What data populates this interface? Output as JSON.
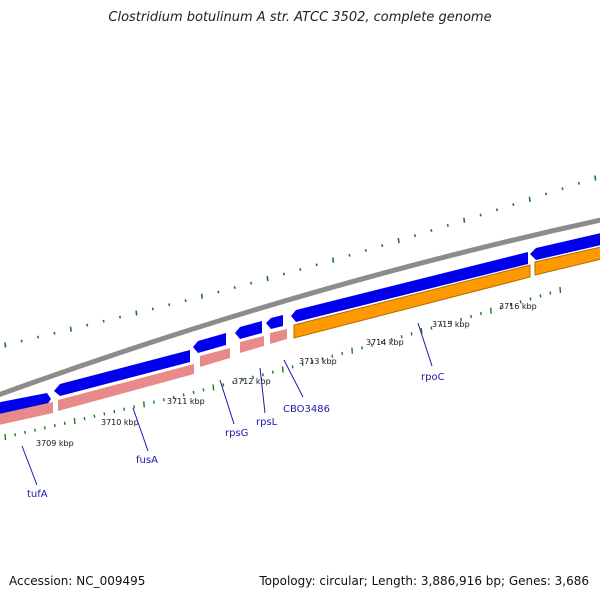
{
  "header": {
    "title": "Clostridium botulinum A str. ATCC 3502, complete genome"
  },
  "footer": {
    "accession": "Accession: NC_009495",
    "summary": "Topology: circular; Length: 3,886,916 bp; Genes: 3,686"
  },
  "map": {
    "colors": {
      "backbone": "#8c8c8c",
      "forward_gene": "#0000ee",
      "pink_feature": "#e98a8a",
      "orange_feature": "#ff9900",
      "orange_edge": "#b36b00",
      "gc_tick": "#1a7a1a",
      "label": "#1a1aa8"
    },
    "tick_labels": [
      {
        "kbp": 3709,
        "text": "3709 kbp"
      },
      {
        "kbp": 3710,
        "text": "3710 kbp"
      },
      {
        "kbp": 3711,
        "text": "3711 kbp"
      },
      {
        "kbp": 3712,
        "text": "3712 kbp"
      },
      {
        "kbp": 3713,
        "text": "3713 kbp"
      },
      {
        "kbp": 3714,
        "text": "3714 kbp"
      },
      {
        "kbp": 3715,
        "text": "3715 kbp"
      },
      {
        "kbp": 3716,
        "text": "3716 kbp"
      }
    ],
    "genes": [
      {
        "name": "tufA"
      },
      {
        "name": "fusA"
      },
      {
        "name": "rpsG"
      },
      {
        "name": "rpsL"
      },
      {
        "name": "CBO3486"
      },
      {
        "name": "rpoC"
      }
    ]
  }
}
